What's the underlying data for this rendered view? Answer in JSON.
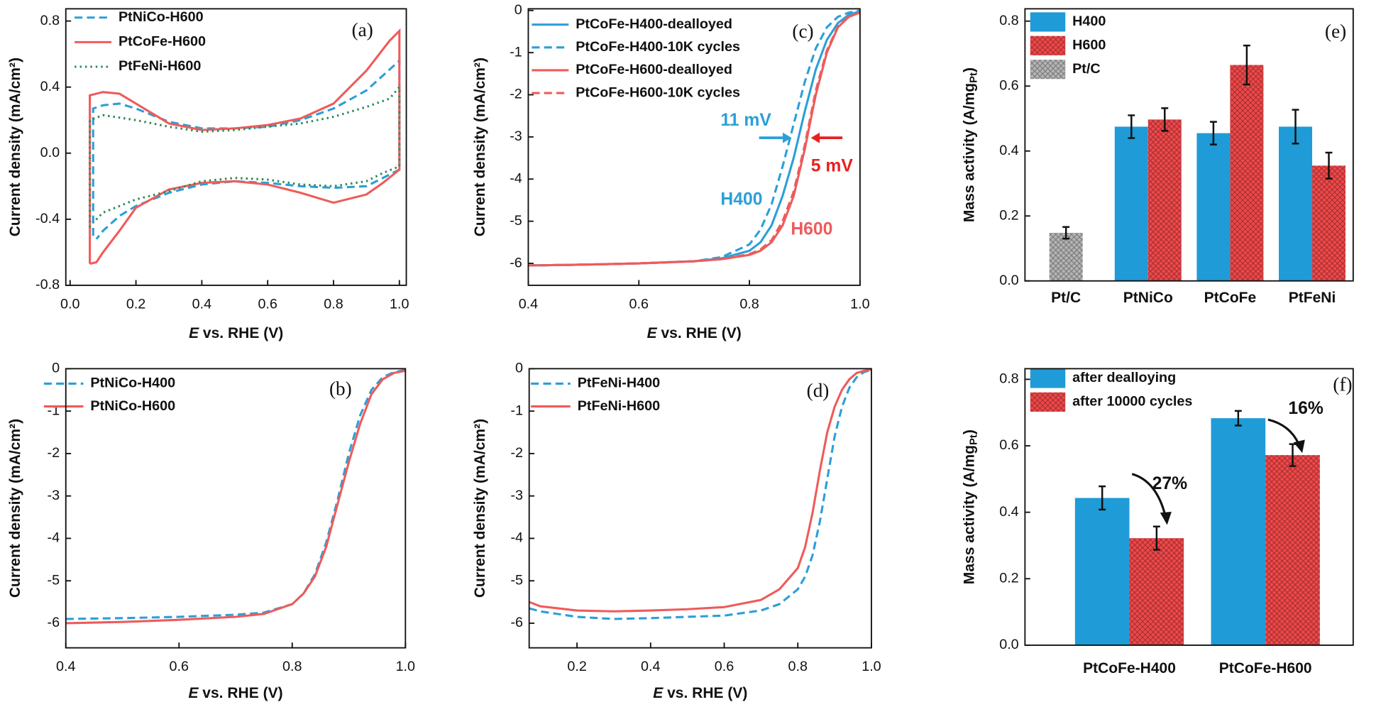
{
  "chart_data": [
    {
      "type": "line",
      "panel": "(a)",
      "xlabel": [
        "E",
        " vs. RHE (V)"
      ],
      "ylabel": "Current density (mA/cm²)",
      "xlim": [
        -0.013,
        1.021
      ],
      "ylim": [
        -0.8,
        0.874
      ],
      "xticks": [
        {
          "value": 0,
          "label": "0.0"
        },
        0.2,
        0.4,
        0.6,
        0.8,
        {
          "value": 1,
          "label": "1.0"
        }
      ],
      "yticks": [
        -0.8,
        -0.4,
        {
          "value": 0,
          "label": "0.0"
        },
        0.4,
        0.8
      ],
      "legend": "upper left",
      "annotations": [],
      "series": [
        {
          "name": "PtNiCo-H600",
          "color": "#2b9fd8",
          "linestyle": "dashed",
          "x": [
            0.07,
            0.07,
            0.1,
            0.15,
            0.2,
            0.3,
            0.4,
            0.5,
            0.6,
            0.7,
            0.8,
            0.9,
            1.0,
            1.0,
            0.95,
            0.9,
            0.8,
            0.7,
            0.6,
            0.5,
            0.4,
            0.3,
            0.2,
            0.15,
            0.1,
            0.08
          ],
          "values": [
            -0.5,
            0.27,
            0.29,
            0.3,
            0.27,
            0.19,
            0.15,
            0.15,
            0.16,
            0.2,
            0.27,
            0.38,
            0.56,
            -0.1,
            -0.15,
            -0.2,
            -0.21,
            -0.2,
            -0.18,
            -0.17,
            -0.19,
            -0.24,
            -0.32,
            -0.38,
            -0.47,
            -0.52
          ]
        },
        {
          "name": "PtCoFe-H600",
          "color": "#ef5b5b",
          "linestyle": "solid",
          "x": [
            0.06,
            0.06,
            0.1,
            0.15,
            0.2,
            0.3,
            0.4,
            0.5,
            0.6,
            0.7,
            0.8,
            0.9,
            0.97,
            1.0,
            1.0,
            0.95,
            0.9,
            0.8,
            0.7,
            0.6,
            0.5,
            0.4,
            0.3,
            0.2,
            0.15,
            0.1,
            0.08,
            0.06
          ],
          "values": [
            -0.67,
            0.35,
            0.37,
            0.36,
            0.3,
            0.18,
            0.14,
            0.15,
            0.17,
            0.21,
            0.3,
            0.5,
            0.68,
            0.74,
            -0.1,
            -0.18,
            -0.25,
            -0.3,
            -0.24,
            -0.19,
            -0.17,
            -0.18,
            -0.22,
            -0.33,
            -0.47,
            -0.6,
            -0.66,
            -0.67
          ]
        },
        {
          "name": "PtFeNi-H600",
          "color": "#2e8b57",
          "linestyle": "dotted",
          "x": [
            0.06,
            0.06,
            0.1,
            0.2,
            0.3,
            0.4,
            0.5,
            0.6,
            0.7,
            0.8,
            0.9,
            0.97,
            1.0,
            1.0,
            0.95,
            0.9,
            0.8,
            0.7,
            0.6,
            0.5,
            0.4,
            0.3,
            0.2,
            0.1,
            0.07
          ],
          "values": [
            -0.45,
            0.2,
            0.23,
            0.2,
            0.16,
            0.13,
            0.14,
            0.16,
            0.18,
            0.22,
            0.28,
            0.33,
            0.4,
            -0.08,
            -0.12,
            -0.17,
            -0.2,
            -0.19,
            -0.16,
            -0.15,
            -0.17,
            -0.23,
            -0.28,
            -0.36,
            -0.42
          ]
        }
      ]
    },
    {
      "type": "line",
      "panel": "(c)",
      "xlabel": [
        "E",
        " vs. RHE (V)"
      ],
      "ylabel": "Current density (mA/cm²)",
      "xlim": [
        0.4,
        1.0
      ],
      "ylim": [
        -6.52,
        0.04
      ],
      "xticks": [
        0.4,
        0.6,
        0.8,
        {
          "value": 1,
          "label": "1.0"
        }
      ],
      "yticks": [
        0,
        -1,
        -2,
        -3,
        -4,
        -5,
        -6
      ],
      "legend": "upper left",
      "annotations": [
        {
          "text": "11 mV",
          "color": "#2b9fd8"
        },
        {
          "text": "5 mV",
          "color": "#e8201f"
        },
        {
          "text": "H400",
          "color": "#2b9fd8"
        },
        {
          "text": "H600",
          "color": "#ef5b5b"
        }
      ],
      "x": [
        0.4,
        0.5,
        0.6,
        0.7,
        0.75,
        0.8,
        0.82,
        0.84,
        0.86,
        0.88,
        0.9,
        0.92,
        0.94,
        0.96,
        0.98,
        1.0
      ],
      "series": [
        {
          "name": "PtCoFe-H400-dealloyed",
          "color": "#2b9fd8",
          "linestyle": "solid",
          "values": [
            -6.05,
            -6.03,
            -6.0,
            -5.95,
            -5.88,
            -5.7,
            -5.5,
            -5.1,
            -4.4,
            -3.5,
            -2.4,
            -1.4,
            -0.7,
            -0.3,
            -0.1,
            -0.02
          ]
        },
        {
          "name": "PtCoFe-H400-10K cycles",
          "color": "#2b9fd8",
          "linestyle": "dashed",
          "values": [
            -6.05,
            -6.03,
            -6.0,
            -5.95,
            -5.85,
            -5.55,
            -5.2,
            -4.6,
            -3.7,
            -2.7,
            -1.7,
            -0.9,
            -0.4,
            -0.15,
            -0.05,
            0.0
          ]
        },
        {
          "name": "PtCoFe-H600-dealloyed",
          "color": "#ef5b5b",
          "linestyle": "solid",
          "values": [
            -6.05,
            -6.03,
            -6.0,
            -5.95,
            -5.9,
            -5.8,
            -5.7,
            -5.5,
            -5.1,
            -4.4,
            -3.3,
            -2.0,
            -1.0,
            -0.4,
            -0.15,
            -0.05
          ]
        },
        {
          "name": "PtCoFe-H600-10K cycles",
          "color": "#ef5b5b",
          "linestyle": "dashed",
          "values": [
            -6.05,
            -6.03,
            -6.0,
            -5.95,
            -5.9,
            -5.78,
            -5.67,
            -5.45,
            -5.0,
            -4.3,
            -3.2,
            -1.9,
            -0.95,
            -0.38,
            -0.14,
            -0.05
          ]
        }
      ]
    },
    {
      "type": "bar",
      "panel": "(e)",
      "ylabel": [
        "Mass activity (A/mg",
        "Pt",
        ")"
      ],
      "ylim": [
        0,
        0.838
      ],
      "yticks": [
        {
          "value": 0,
          "label": "0.0"
        },
        0.2,
        0.4,
        0.6,
        0.8
      ],
      "legend": "upper left",
      "annotations": [],
      "categories": [
        "Pt/C",
        "PtNiCo",
        "PtCoFe",
        "PtFeNi"
      ],
      "series": [
        {
          "name": "H400",
          "color": "#1f9bd7",
          "hatch": false,
          "values": [
            null,
            0.475,
            0.455,
            0.475
          ],
          "errors": [
            null,
            0.035,
            0.035,
            0.052
          ]
        },
        {
          "name": "H600",
          "color": "#f0484a",
          "hatch": true,
          "values": [
            null,
            0.497,
            0.665,
            0.355
          ],
          "errors": [
            null,
            0.035,
            0.06,
            0.04
          ]
        },
        {
          "name": "Pt/C",
          "color": "#b4b4b4",
          "hatch": true,
          "values": [
            0.148,
            null,
            null,
            null
          ],
          "errors": [
            0.018,
            null,
            null,
            null
          ]
        }
      ]
    },
    {
      "type": "line",
      "panel": "(b)",
      "xlabel": [
        "E",
        " vs. RHE (V)"
      ],
      "ylabel": "Current density (mA/cm²)",
      "xlim": [
        0.4,
        1.0
      ],
      "ylim": [
        -6.58,
        0
      ],
      "xticks": [
        0.4,
        0.6,
        0.8,
        {
          "value": 1,
          "label": "1.0"
        }
      ],
      "yticks": [
        0,
        -1,
        -2,
        -3,
        -4,
        -5,
        -6
      ],
      "legend": "upper left",
      "annotations": [],
      "x": [
        0.4,
        0.5,
        0.6,
        0.7,
        0.75,
        0.8,
        0.82,
        0.84,
        0.86,
        0.88,
        0.9,
        0.92,
        0.94,
        0.96,
        0.98,
        1.0
      ],
      "series": [
        {
          "name": "PtNiCo-H400",
          "color": "#2b9fd8",
          "linestyle": "dashed",
          "values": [
            -5.9,
            -5.88,
            -5.85,
            -5.8,
            -5.75,
            -5.55,
            -5.3,
            -4.85,
            -4.1,
            -3.1,
            -2.0,
            -1.1,
            -0.5,
            -0.2,
            -0.08,
            -0.03
          ]
        },
        {
          "name": "PtNiCo-H600",
          "color": "#ef5b5b",
          "linestyle": "solid",
          "values": [
            -6.0,
            -5.97,
            -5.92,
            -5.85,
            -5.78,
            -5.55,
            -5.3,
            -4.9,
            -4.2,
            -3.2,
            -2.2,
            -1.3,
            -0.6,
            -0.25,
            -0.1,
            -0.05
          ]
        }
      ]
    },
    {
      "type": "line",
      "panel": "(d)",
      "xlabel": [
        "E",
        " vs. RHE (V)"
      ],
      "ylabel": "Current density (mA/cm²)",
      "xlim": [
        0.07,
        1.0
      ],
      "ylim": [
        -6.58,
        0
      ],
      "xticks": [
        0.2,
        0.4,
        0.6,
        0.8,
        {
          "value": 1,
          "label": "1.0"
        }
      ],
      "yticks": [
        0,
        -1,
        -2,
        -3,
        -4,
        -5,
        -6
      ],
      "legend": "upper left",
      "annotations": [],
      "x": [
        0.07,
        0.1,
        0.2,
        0.3,
        0.4,
        0.5,
        0.6,
        0.7,
        0.75,
        0.8,
        0.82,
        0.84,
        0.86,
        0.88,
        0.9,
        0.92,
        0.94,
        0.96,
        0.98,
        1.0
      ],
      "series": [
        {
          "name": "PtFeNi-H400",
          "color": "#2b9fd8",
          "linestyle": "dashed",
          "values": [
            -5.65,
            -5.72,
            -5.85,
            -5.9,
            -5.88,
            -5.85,
            -5.82,
            -5.7,
            -5.55,
            -5.2,
            -4.9,
            -4.4,
            -3.6,
            -2.6,
            -1.6,
            -0.9,
            -0.45,
            -0.2,
            -0.08,
            -0.03
          ]
        },
        {
          "name": "PtFeNi-H600",
          "color": "#ef5b5b",
          "linestyle": "solid",
          "values": [
            -5.5,
            -5.6,
            -5.7,
            -5.72,
            -5.7,
            -5.67,
            -5.62,
            -5.45,
            -5.2,
            -4.7,
            -4.2,
            -3.4,
            -2.4,
            -1.5,
            -0.9,
            -0.5,
            -0.25,
            -0.1,
            -0.05,
            -0.02
          ]
        }
      ]
    },
    {
      "type": "bar",
      "panel": "(f)",
      "ylabel": [
        "Mass activity (A/mg",
        "Pt",
        ")"
      ],
      "ylim": [
        0,
        0.832
      ],
      "yticks": [
        {
          "value": 0,
          "label": "0.0"
        },
        0.2,
        0.4,
        0.6,
        0.8
      ],
      "legend": "upper left",
      "annotations": [
        {
          "text": "27%",
          "color": "#111111"
        },
        {
          "text": "16%",
          "color": "#111111"
        }
      ],
      "categories": [
        "PtCoFe-H400",
        "PtCoFe-H600"
      ],
      "series": [
        {
          "name": "after dealloying",
          "color": "#1f9bd7",
          "hatch": false,
          "values": [
            0.443,
            0.683
          ],
          "errors": [
            0.035,
            0.022
          ]
        },
        {
          "name": "after 10000 cycles",
          "color": "#f0484a",
          "hatch": true,
          "values": [
            0.322,
            0.572
          ],
          "errors": [
            0.035,
            0.033
          ]
        }
      ]
    }
  ]
}
